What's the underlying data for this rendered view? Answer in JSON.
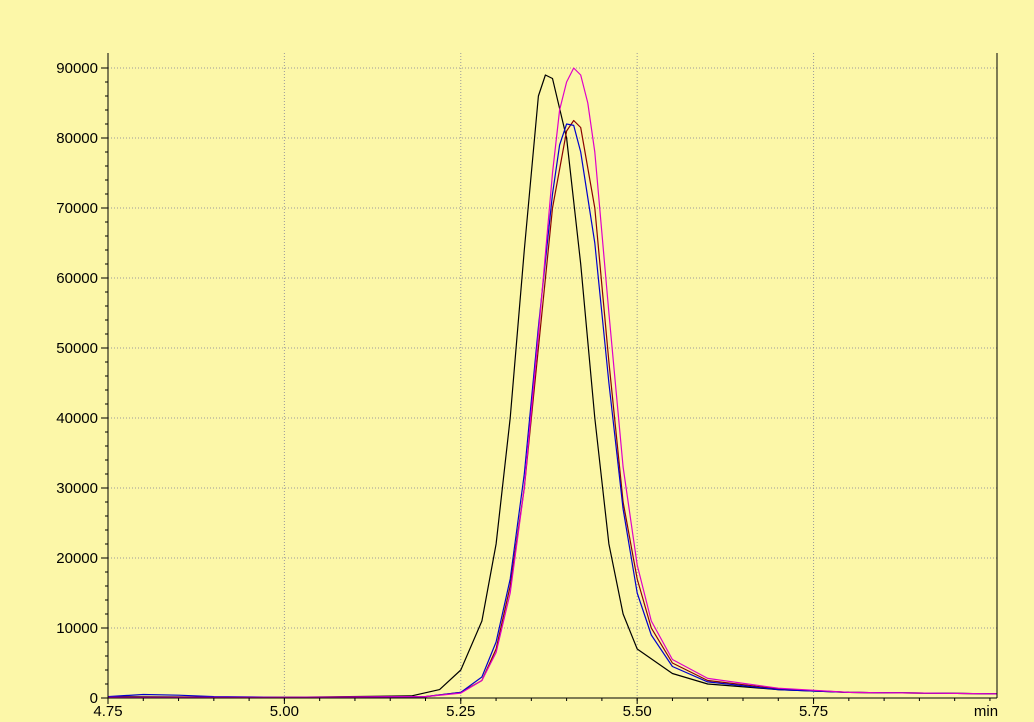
{
  "chart_data": {
    "type": "line",
    "title": "",
    "xlabel": "",
    "ylabel": "",
    "x_unit": "min",
    "xlim": [
      4.75,
      6.01
    ],
    "ylim": [
      0,
      90000
    ],
    "x_ticks": [
      4.75,
      5.0,
      5.25,
      5.5,
      5.75
    ],
    "x_tick_labels": [
      "4.75",
      "5.00",
      "5.25",
      "5.50",
      "5.75"
    ],
    "y_ticks": [
      0,
      10000,
      20000,
      30000,
      40000,
      50000,
      60000,
      70000,
      80000,
      90000
    ],
    "y_tick_labels": [
      "0",
      "10000",
      "20000",
      "30000",
      "40000",
      "50000",
      "60000",
      "70000",
      "80000",
      "90000"
    ],
    "grid": true,
    "background_color": "#fcf7a8",
    "series": [
      {
        "color": "#000000",
        "x": [
          4.75,
          5.0,
          5.18,
          5.22,
          5.25,
          5.28,
          5.3,
          5.32,
          5.34,
          5.36,
          5.37,
          5.38,
          5.4,
          5.42,
          5.44,
          5.46,
          5.48,
          5.5,
          5.55,
          5.6,
          5.7,
          5.8,
          6.01
        ],
        "y": [
          200,
          100,
          300,
          1200,
          4000,
          11000,
          22000,
          40000,
          64000,
          86000,
          89000,
          88500,
          80000,
          62000,
          40000,
          22000,
          12000,
          7000,
          3500,
          2000,
          1200,
          800,
          600
        ]
      },
      {
        "color": "#8b0000",
        "x": [
          4.75,
          5.0,
          5.2,
          5.25,
          5.28,
          5.3,
          5.32,
          5.34,
          5.36,
          5.38,
          5.4,
          5.41,
          5.42,
          5.44,
          5.46,
          5.48,
          5.5,
          5.52,
          5.55,
          5.6,
          5.7,
          5.8,
          6.01
        ],
        "y": [
          100,
          100,
          200,
          800,
          2500,
          7000,
          16000,
          30000,
          50000,
          70000,
          81000,
          82500,
          81500,
          70000,
          48000,
          28000,
          17000,
          10000,
          5000,
          2500,
          1300,
          800,
          600
        ]
      },
      {
        "color": "#0000cc",
        "x": [
          4.75,
          4.8,
          4.85,
          4.9,
          5.0,
          5.2,
          5.25,
          5.28,
          5.3,
          5.32,
          5.34,
          5.36,
          5.38,
          5.39,
          5.4,
          5.41,
          5.42,
          5.44,
          5.46,
          5.48,
          5.5,
          5.52,
          5.55,
          5.6,
          5.7,
          5.8,
          6.01
        ],
        "y": [
          200,
          500,
          400,
          200,
          100,
          200,
          800,
          3000,
          8000,
          17000,
          32000,
          53000,
          72000,
          79000,
          82000,
          81800,
          78000,
          65000,
          45000,
          27000,
          15000,
          9000,
          4500,
          2300,
          1200,
          800,
          600
        ]
      },
      {
        "color": "#e000c8",
        "x": [
          4.75,
          5.0,
          5.2,
          5.25,
          5.28,
          5.3,
          5.32,
          5.34,
          5.36,
          5.38,
          5.39,
          5.4,
          5.41,
          5.42,
          5.43,
          5.44,
          5.46,
          5.48,
          5.5,
          5.52,
          5.55,
          5.6,
          5.7,
          5.8,
          6.01
        ],
        "y": [
          100,
          100,
          200,
          700,
          2500,
          6500,
          15000,
          30000,
          52000,
          75000,
          84000,
          88000,
          90000,
          89000,
          85000,
          78000,
          55000,
          33000,
          19000,
          11000,
          5500,
          2800,
          1400,
          800,
          600
        ]
      }
    ]
  }
}
